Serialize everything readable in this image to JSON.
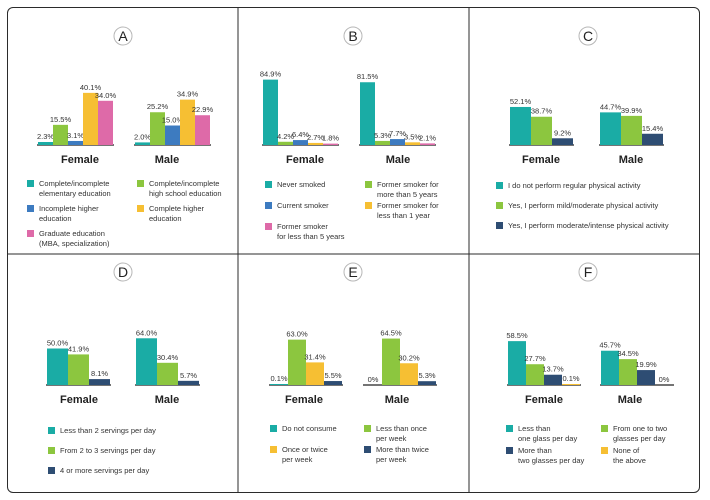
{
  "colors": {
    "teal": "#1aaca5",
    "blue": "#3d7bc0",
    "green": "#8cc63f",
    "yellow": "#f6bf33",
    "pink": "#de6aa8",
    "navy": "#2e4d73"
  },
  "chart_data": [
    {
      "id": "A",
      "type": "bar",
      "categories": [
        "Female",
        "Male"
      ],
      "series": [
        {
          "name": "Complete/incomplete elementary education",
          "color_key": "teal",
          "values": [
            2.3,
            2.0
          ],
          "labels": [
            "2.3%",
            "2.0%"
          ]
        },
        {
          "name": "Complete/incomplete high school education",
          "color_key": "green",
          "values": [
            15.5,
            25.2
          ],
          "labels": [
            "15.5%",
            "25.2%"
          ]
        },
        {
          "name": "Incomplete higher education",
          "color_key": "blue",
          "values": [
            3.1,
            15.0
          ],
          "labels": [
            "3.1%",
            "15.0%"
          ]
        },
        {
          "name": "Complete higher education",
          "color_key": "yellow",
          "values": [
            40.1,
            34.9
          ],
          "labels": [
            "40.1%",
            "34.9%"
          ]
        },
        {
          "name": "Graduate education (MBA, specialization)",
          "color_key": "pink",
          "values": [
            34.0,
            22.9
          ],
          "labels": [
            "34.0%",
            "22.9%"
          ]
        }
      ],
      "legend": [
        [
          "Complete/incomplete",
          "elementary education"
        ],
        [
          "Complete/incomplete",
          "high school education"
        ],
        [
          "Incomplete higher",
          "education"
        ],
        [
          "Complete higher",
          "education"
        ],
        [
          "Graduate education",
          "(MBA, specialization)"
        ]
      ]
    },
    {
      "id": "B",
      "type": "bar",
      "categories": [
        "Female",
        "Male"
      ],
      "series": [
        {
          "name": "Never smoked",
          "color_key": "teal",
          "values": [
            84.9,
            81.5
          ],
          "labels": [
            "84.9%",
            "81.5%"
          ]
        },
        {
          "name": "Former smoker for more than 5 years",
          "color_key": "green",
          "values": [
            4.2,
            5.3
          ],
          "labels": [
            "4.2%",
            "5.3%"
          ]
        },
        {
          "name": "Current smoker",
          "color_key": "blue",
          "values": [
            6.4,
            7.7
          ],
          "labels": [
            "6.4%",
            "7.7%"
          ]
        },
        {
          "name": "Former smoker for less than 1 year",
          "color_key": "yellow",
          "values": [
            2.7,
            3.5
          ],
          "labels": [
            "2.7%",
            "3.5%"
          ]
        },
        {
          "name": "Former smoker for less than 5 years",
          "color_key": "pink",
          "values": [
            1.8,
            2.1
          ],
          "labels": [
            "1.8%",
            "2.1%"
          ]
        }
      ],
      "legend": [
        [
          "Never smoked"
        ],
        [
          "Former smoker for",
          "more than 5 years"
        ],
        [
          "Current smoker"
        ],
        [
          "Former smoker for",
          "less than 1 year"
        ],
        [
          "Former smoker",
          "for less than 5 years"
        ]
      ]
    },
    {
      "id": "C",
      "type": "bar",
      "categories": [
        "Female",
        "Male"
      ],
      "series": [
        {
          "name": "I do not perform regular physical activity",
          "color_key": "teal",
          "values": [
            52.1,
            44.7
          ],
          "labels": [
            "52.1%",
            "44.7%"
          ]
        },
        {
          "name": "Yes, I perform mild/moderate physical activity",
          "color_key": "green",
          "values": [
            38.7,
            39.9
          ],
          "labels": [
            "38.7%",
            "39.9%"
          ]
        },
        {
          "name": "Yes, I perform moderate/intense physical activity",
          "color_key": "navy",
          "values": [
            9.2,
            15.4
          ],
          "labels": [
            "9.2%",
            "15.4%"
          ]
        }
      ],
      "legend": [
        [
          "I do not perform regular physical activity"
        ],
        [
          "Yes, I perform mild/moderate physical activity"
        ],
        [
          "Yes, I perform moderate/intense physical activity"
        ]
      ]
    },
    {
      "id": "D",
      "type": "bar",
      "categories": [
        "Female",
        "Male"
      ],
      "series": [
        {
          "name": "Less than 2 servings per day",
          "color_key": "teal",
          "values": [
            50.0,
            64.0
          ],
          "labels": [
            "50.0%",
            "64.0%"
          ]
        },
        {
          "name": "From 2 to 3 servings per day",
          "color_key": "green",
          "values": [
            41.9,
            30.4
          ],
          "labels": [
            "41.9%",
            "30.4%"
          ]
        },
        {
          "name": "4 or more servings per day",
          "color_key": "navy",
          "values": [
            8.1,
            5.7
          ],
          "labels": [
            "8.1%",
            "5.7%"
          ]
        }
      ],
      "legend": [
        [
          "Less than 2 servings per day"
        ],
        [
          "From 2 to 3 servings per day"
        ],
        [
          "4 or more servings per day"
        ]
      ]
    },
    {
      "id": "E",
      "type": "bar",
      "categories": [
        "Female",
        "Male"
      ],
      "series": [
        {
          "name": "Do not consume",
          "color_key": "teal",
          "values": [
            0.1,
            0.0
          ],
          "labels": [
            "0.1%",
            "0%"
          ]
        },
        {
          "name": "Less than once per week",
          "color_key": "green",
          "values": [
            63.0,
            64.5
          ],
          "labels": [
            "63.0%",
            "64.5%"
          ]
        },
        {
          "name": "Once or twice per week",
          "color_key": "yellow",
          "values": [
            31.4,
            30.2
          ],
          "labels": [
            "31.4%",
            "30.2%"
          ]
        },
        {
          "name": "More than twice per week",
          "color_key": "navy",
          "values": [
            5.5,
            5.3
          ],
          "labels": [
            "5.5%",
            "5.3%"
          ]
        }
      ],
      "legend": [
        [
          "Do not consume"
        ],
        [
          "Less than once",
          "per week"
        ],
        [
          "Once or twice",
          "per week"
        ],
        [
          "More than twice",
          "per week"
        ]
      ]
    },
    {
      "id": "F",
      "type": "bar",
      "categories": [
        "Female",
        "Male"
      ],
      "series": [
        {
          "name": "Less than one glass per day",
          "color_key": "teal",
          "values": [
            58.5,
            45.7
          ],
          "labels": [
            "58.5%",
            "45.7%"
          ]
        },
        {
          "name": "From one to two glasses per day",
          "color_key": "green",
          "values": [
            27.7,
            34.5
          ],
          "labels": [
            "27.7%",
            "34.5%"
          ]
        },
        {
          "name": "More than two glasses per day",
          "color_key": "navy",
          "values": [
            13.7,
            19.9
          ],
          "labels": [
            "13.7%",
            "19.9%"
          ]
        },
        {
          "name": "None of the above",
          "color_key": "yellow",
          "values": [
            0.1,
            0.0
          ],
          "labels": [
            "0.1%",
            "0%"
          ]
        }
      ],
      "legend": [
        [
          "Less than",
          "one glass per day"
        ],
        [
          "From one to two",
          "glasses per day"
        ],
        [
          "More than",
          "two glasses per day"
        ],
        [
          "None of",
          "the above"
        ]
      ]
    }
  ]
}
